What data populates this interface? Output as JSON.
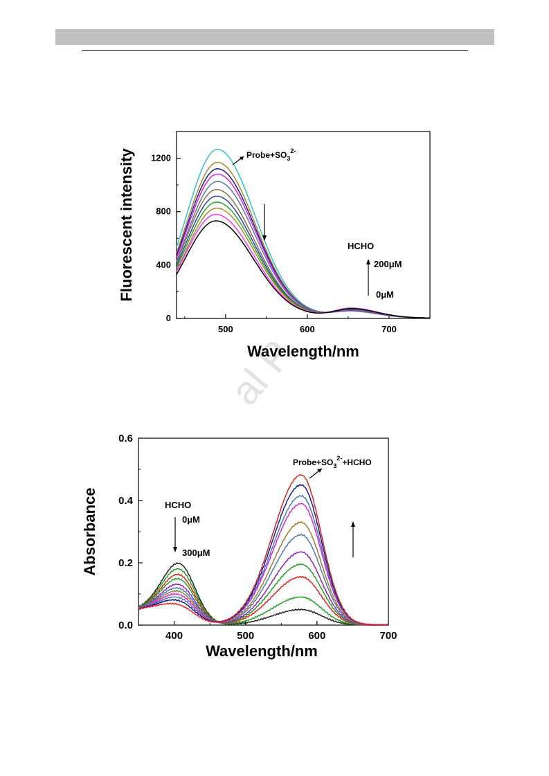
{
  "watermark": "al P",
  "chart_data": [
    {
      "type": "line",
      "xlabel": "Wavelength/nm",
      "ylabel": "Fluorescent intensity",
      "xlim": [
        440,
        750
      ],
      "ylim": [
        0,
        1400
      ],
      "xticks": [
        500,
        600,
        700
      ],
      "yticks": [
        0,
        400,
        800,
        1200
      ],
      "grid": false,
      "annotations": {
        "top_label": "Probe+SO",
        "top_sub": "3",
        "top_sup": "2-",
        "conc_title": "HCHO",
        "conc_high": "200μM",
        "conc_low": "0μM"
      },
      "series": [
        {
          "color": "#33c0c8",
          "peak": 1265,
          "peak_x": 490,
          "red_peak": 42
        },
        {
          "color": "#a08a2a",
          "peak": 1168,
          "peak_x": 490,
          "red_peak": 45
        },
        {
          "color": "#1a1a8c",
          "peak": 1120,
          "peak_x": 490,
          "red_peak": 48
        },
        {
          "color": "#e020e0",
          "peak": 1080,
          "peak_x": 490,
          "red_peak": 50
        },
        {
          "color": "#5a7aa8",
          "peak": 1025,
          "peak_x": 490,
          "red_peak": 53
        },
        {
          "color": "#8a7050",
          "peak": 965,
          "peak_x": 489,
          "red_peak": 56
        },
        {
          "color": "#3a3aa8",
          "peak": 915,
          "peak_x": 489,
          "red_peak": 58
        },
        {
          "color": "#20b020",
          "peak": 870,
          "peak_x": 489,
          "red_peak": 61
        },
        {
          "color": "#b08a20",
          "peak": 825,
          "peak_x": 489,
          "red_peak": 63
        },
        {
          "color": "#ff30ff",
          "peak": 778,
          "peak_x": 488,
          "red_peak": 66
        },
        {
          "color": "#000000",
          "peak": 730,
          "peak_x": 488,
          "red_peak": 62
        }
      ]
    },
    {
      "type": "line",
      "xlabel": "Wavelength/nm",
      "ylabel": "Absorbance",
      "xlim": [
        350,
        700
      ],
      "ylim": [
        0,
        0.6
      ],
      "xticks": [
        400,
        500,
        600,
        700
      ],
      "yticks": [
        0.0,
        0.2,
        0.4,
        0.6
      ],
      "ytick_labels": [
        "0.0",
        "0.2",
        "0.4",
        "0.6"
      ],
      "grid": false,
      "annotations": {
        "top_label": "Probe+SO",
        "top_sub": "3",
        "top_sup": "2-",
        "top_suffix": "+HCHO",
        "conc_title": "HCHO",
        "conc_low": "0μM",
        "conc_high": "300μM"
      },
      "series": [
        {
          "color": "#202020",
          "band1": 0.178,
          "band2": 0.05
        },
        {
          "color": "#20a020",
          "band1": 0.16,
          "band2": 0.09
        },
        {
          "color": "#e02020",
          "band1": 0.142,
          "band2": 0.155
        },
        {
          "color": "#20a020",
          "band1": 0.128,
          "band2": 0.195
        },
        {
          "color": "#9020c0",
          "band1": 0.11,
          "band2": 0.235
        },
        {
          "color": "#4a7ab0",
          "band1": 0.098,
          "band2": 0.29
        },
        {
          "color": "#a07a30",
          "band1": 0.088,
          "band2": 0.33
        },
        {
          "color": "#e020e0",
          "band1": 0.078,
          "band2": 0.39
        },
        {
          "color": "#4a7ab0",
          "band1": 0.068,
          "band2": 0.415
        },
        {
          "color": "#1a1a8c",
          "band1": 0.058,
          "band2": 0.45
        },
        {
          "color": "#e02020",
          "band1": 0.045,
          "band2": 0.482
        }
      ]
    }
  ]
}
